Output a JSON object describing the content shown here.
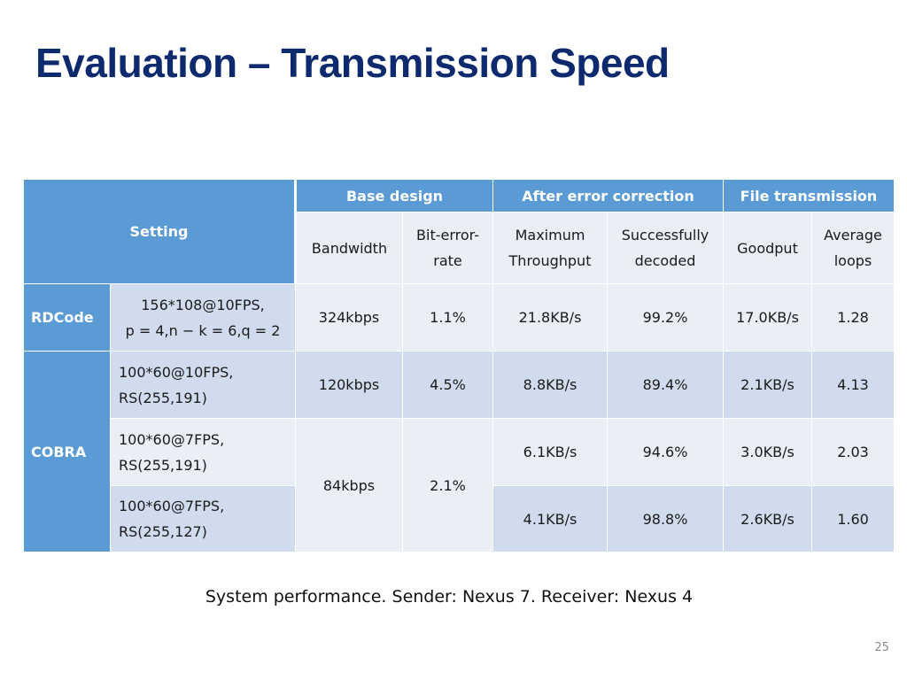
{
  "slide": {
    "title": "Evaluation – Transmission Speed",
    "caption": "System performance. Sender: Nexus 7. Receiver: Nexus 4",
    "page_number": "25"
  },
  "table": {
    "setting_header": "Setting",
    "groups": [
      "Base design",
      "After error correction",
      "File transmission"
    ],
    "columns": [
      [
        "Bandwidth"
      ],
      [
        "Bit-error-",
        "rate"
      ],
      [
        "Maximum",
        "Throughput"
      ],
      [
        "Successfully",
        "decoded"
      ],
      [
        "Goodput"
      ],
      [
        "Average",
        "loops"
      ]
    ],
    "rows": [
      {
        "system": "RDCode",
        "setting": [
          "156*108@10FPS,",
          "p = 4,n − k = 6,q = 2"
        ],
        "bandwidth": "324kbps",
        "ber": "1.1%",
        "throughput": "21.8KB/s",
        "decoded": "99.2%",
        "goodput": "17.0KB/s",
        "loops": "1.28"
      },
      {
        "system": "COBRA",
        "setting": [
          "100*60@10FPS,",
          "RS(255,191)"
        ],
        "bandwidth": "120kbps",
        "ber": "4.5%",
        "throughput": "8.8KB/s",
        "decoded": "89.4%",
        "goodput": "2.1KB/s",
        "loops": "4.13"
      },
      {
        "setting": [
          "100*60@7FPS,",
          "RS(255,191)"
        ],
        "bandwidth": "84kbps",
        "ber": "2.1%",
        "throughput": "6.1KB/s",
        "decoded": "94.6%",
        "goodput": "3.0KB/s",
        "loops": "2.03"
      },
      {
        "setting": [
          "100*60@7FPS,",
          "RS(255,127)"
        ],
        "throughput": "4.1KB/s",
        "decoded": "98.8%",
        "goodput": "2.6KB/s",
        "loops": "1.60"
      }
    ]
  },
  "colors": {
    "title": "#0d2a6e",
    "header_fill": "#5b9bd5",
    "row_light": "#e9eef7",
    "row_dark": "#d0dcee"
  }
}
